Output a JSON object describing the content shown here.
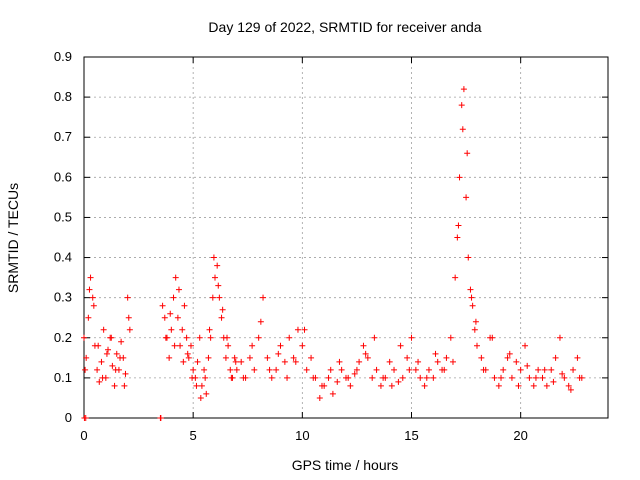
{
  "chart_data": {
    "type": "scatter",
    "title": "Day 129 of 2022, SRMTID for receiver anda",
    "xlabel": "GPS time / hours",
    "ylabel": "SRMTID / TECUs",
    "xlim": [
      0,
      24
    ],
    "ylim": [
      0,
      0.9
    ],
    "x_ticks": [
      0,
      5,
      10,
      15,
      20
    ],
    "x_tick_labels": [
      "0",
      "5",
      "10",
      "15",
      "20"
    ],
    "y_ticks": [
      0,
      0.1,
      0.2,
      0.3,
      0.4,
      0.5,
      0.6,
      0.7,
      0.8,
      0.9
    ],
    "y_tick_labels": [
      "0",
      "0.1",
      "0.2",
      "0.3",
      "0.4",
      "0.5",
      "0.6",
      "0.7",
      "0.8",
      "0.9"
    ],
    "grid": true,
    "series": [
      {
        "name": "SRMTID",
        "color": "#ff0000",
        "marker": "plus",
        "x": [
          0.0,
          0.1,
          0.2,
          0.3,
          0.4,
          0.5,
          0.6,
          0.7,
          0.8,
          0.9,
          1.0,
          1.1,
          1.2,
          1.3,
          1.4,
          1.5,
          1.6,
          1.7,
          1.8,
          1.9,
          2.0,
          2.1,
          3.6,
          3.7,
          3.8,
          3.9,
          4.0,
          4.1,
          4.2,
          4.3,
          4.4,
          4.5,
          4.6,
          4.7,
          4.8,
          4.9,
          5.0,
          5.1,
          5.2,
          5.3,
          5.4,
          5.5,
          5.6,
          5.7,
          5.8,
          5.9,
          6.0,
          6.1,
          6.2,
          6.3,
          6.4,
          6.5,
          6.6,
          6.7,
          6.8,
          6.9,
          7.0,
          7.2,
          7.4,
          7.6,
          7.8,
          8.0,
          8.2,
          8.4,
          8.6,
          8.8,
          9.0,
          9.2,
          9.4,
          9.6,
          9.8,
          10.0,
          10.2,
          10.4,
          10.6,
          10.8,
          11.0,
          11.2,
          11.4,
          11.6,
          11.8,
          12.0,
          12.2,
          12.4,
          12.6,
          12.8,
          13.0,
          13.2,
          13.4,
          13.6,
          13.8,
          14.0,
          14.2,
          14.4,
          14.6,
          14.8,
          15.0,
          15.2,
          15.4,
          15.6,
          15.8,
          16.0,
          16.2,
          16.4,
          16.6,
          16.8,
          17.0,
          17.1,
          17.2,
          17.3,
          17.4,
          17.5,
          17.6,
          17.7,
          17.8,
          17.9,
          18.0,
          18.2,
          18.4,
          18.6,
          18.8,
          19.0,
          19.2,
          19.4,
          19.6,
          19.8,
          20.0,
          20.2,
          20.4,
          20.6,
          20.8,
          21.0,
          21.2,
          21.4,
          21.6,
          21.8,
          22.0,
          22.2,
          22.4,
          22.6,
          22.8,
          0.05,
          0.25,
          0.45,
          0.65,
          0.85,
          1.05,
          1.25,
          1.45,
          1.65,
          1.85,
          2.05,
          3.75,
          3.95,
          4.15,
          4.35,
          4.55,
          4.75,
          4.95,
          5.15,
          5.35,
          5.55,
          5.75,
          5.95,
          6.15,
          6.35,
          6.55,
          6.75,
          6.95,
          7.3,
          7.7,
          8.1,
          8.5,
          8.9,
          9.3,
          9.7,
          10.1,
          10.5,
          10.9,
          11.3,
          11.7,
          12.1,
          12.5,
          12.9,
          13.3,
          13.7,
          14.1,
          14.5,
          14.9,
          15.3,
          15.7,
          16.1,
          16.5,
          16.9,
          17.15,
          17.35,
          17.55,
          17.75,
          17.95,
          18.3,
          18.7,
          19.1,
          19.5,
          19.9,
          20.3,
          20.7,
          21.1,
          21.5,
          21.9,
          22.3,
          22.7,
          0.02,
          0.08,
          3.5,
          3.52
        ],
        "y": [
          0.2,
          0.15,
          0.25,
          0.35,
          0.3,
          0.18,
          0.12,
          0.09,
          0.14,
          0.22,
          0.1,
          0.17,
          0.2,
          0.13,
          0.08,
          0.16,
          0.12,
          0.19,
          0.15,
          0.11,
          0.3,
          0.22,
          0.28,
          0.25,
          0.2,
          0.15,
          0.22,
          0.3,
          0.35,
          0.25,
          0.18,
          0.22,
          0.28,
          0.2,
          0.15,
          0.18,
          0.12,
          0.1,
          0.14,
          0.2,
          0.08,
          0.12,
          0.06,
          0.15,
          0.2,
          0.3,
          0.35,
          0.38,
          0.3,
          0.25,
          0.2,
          0.15,
          0.18,
          0.12,
          0.1,
          0.15,
          0.12,
          0.14,
          0.1,
          0.15,
          0.12,
          0.2,
          0.3,
          0.15,
          0.1,
          0.12,
          0.18,
          0.14,
          0.2,
          0.15,
          0.22,
          0.18,
          0.12,
          0.15,
          0.1,
          0.05,
          0.08,
          0.1,
          0.06,
          0.09,
          0.12,
          0.1,
          0.08,
          0.11,
          0.14,
          0.18,
          0.15,
          0.1,
          0.12,
          0.08,
          0.1,
          0.14,
          0.12,
          0.09,
          0.1,
          0.15,
          0.2,
          0.12,
          0.1,
          0.08,
          0.12,
          0.1,
          0.14,
          0.12,
          0.15,
          0.2,
          0.35,
          0.45,
          0.6,
          0.78,
          0.82,
          0.55,
          0.4,
          0.32,
          0.28,
          0.22,
          0.18,
          0.15,
          0.12,
          0.2,
          0.1,
          0.08,
          0.12,
          0.15,
          0.1,
          0.14,
          0.12,
          0.18,
          0.1,
          0.08,
          0.12,
          0.1,
          0.08,
          0.12,
          0.15,
          0.2,
          0.1,
          0.08,
          0.12,
          0.15,
          0.1,
          0.12,
          0.32,
          0.28,
          0.18,
          0.1,
          0.16,
          0.2,
          0.12,
          0.15,
          0.08,
          0.25,
          0.2,
          0.26,
          0.18,
          0.32,
          0.14,
          0.16,
          0.1,
          0.08,
          0.05,
          0.1,
          0.22,
          0.4,
          0.33,
          0.27,
          0.2,
          0.1,
          0.14,
          0.1,
          0.18,
          0.24,
          0.12,
          0.16,
          0.1,
          0.14,
          0.22,
          0.1,
          0.08,
          0.12,
          0.14,
          0.1,
          0.12,
          0.16,
          0.2,
          0.1,
          0.08,
          0.18,
          0.12,
          0.14,
          0.1,
          0.16,
          0.12,
          0.14,
          0.48,
          0.72,
          0.66,
          0.3,
          0.24,
          0.12,
          0.2,
          0.1,
          0.16,
          0.08,
          0.13,
          0.1,
          0.12,
          0.09,
          0.11,
          0.07,
          0.1,
          0.0,
          0.0,
          0.0,
          0.0
        ]
      }
    ]
  }
}
